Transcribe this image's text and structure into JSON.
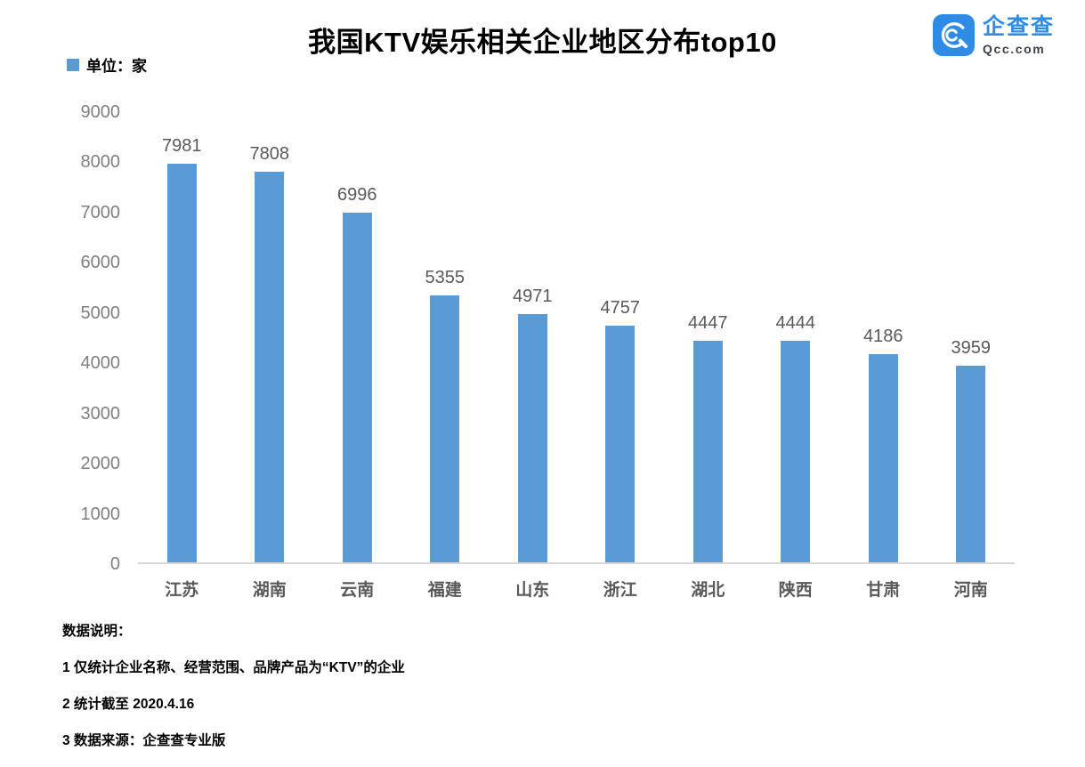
{
  "header": {
    "title": "我国KTV娱乐相关企业地区分布top10",
    "logo": {
      "icon": "qcc-logo-icon",
      "brand": "企查查",
      "domain": "Qcc.com",
      "brand_color": "#2e8be6"
    }
  },
  "legend": {
    "label": "单位：家",
    "swatch_color": "#5b9bd5"
  },
  "chart_data": {
    "type": "bar",
    "title": "我国KTV娱乐相关企业地区分布top10",
    "unit_label": "单位：家",
    "categories": [
      "江苏",
      "湖南",
      "云南",
      "福建",
      "山东",
      "浙江",
      "湖北",
      "陕西",
      "甘肃",
      "河南"
    ],
    "values": [
      7981,
      7808,
      6996,
      5355,
      4971,
      4757,
      4447,
      4444,
      4186,
      3959
    ],
    "xlabel": "",
    "ylabel": "",
    "ylim": [
      0,
      9000
    ],
    "y_ticks": [
      0,
      1000,
      2000,
      3000,
      4000,
      5000,
      6000,
      7000,
      8000,
      9000
    ],
    "bar_color": "#5b9bd5",
    "grid": false,
    "value_labels": true,
    "legend_position": "top-left"
  },
  "footnotes": {
    "heading": "数据说明：",
    "items": [
      "1 仅统计企业名称、经营范围、品牌产品为“KTV”的企业",
      "2 统计截至 2020.4.16",
      "3 数据来源：企查查专业版"
    ]
  }
}
